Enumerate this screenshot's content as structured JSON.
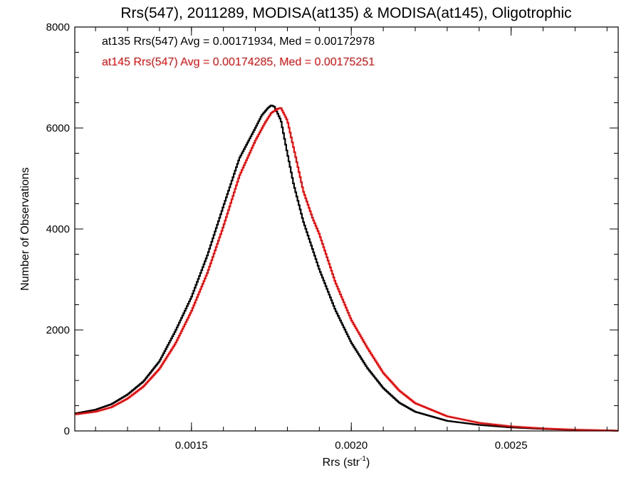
{
  "chart_data": {
    "type": "line",
    "title": "Rrs(547), 2011289, MODISA(at135) & MODISA(at145), Oligotrophic",
    "xlabel_main": "Rrs (str",
    "xlabel_sup": "-1",
    "xlabel_close": ")",
    "ylabel": "Number of Observations",
    "xlim": [
      0.001135,
      0.002835
    ],
    "ylim": [
      0,
      8000
    ],
    "x_ticks": [
      {
        "value": 0.0015,
        "label": "0.0015"
      },
      {
        "value": 0.002,
        "label": "0.0020"
      },
      {
        "value": 0.0025,
        "label": "0.0025"
      }
    ],
    "x_minor_step": 0.0001,
    "y_ticks": [
      {
        "value": 0,
        "label": "0"
      },
      {
        "value": 2000,
        "label": "2000"
      },
      {
        "value": 4000,
        "label": "4000"
      },
      {
        "value": 6000,
        "label": "6000"
      },
      {
        "value": 8000,
        "label": "8000"
      }
    ],
    "y_minor_step": 500,
    "grid": false,
    "legend_placement": "top-left",
    "series": [
      {
        "name": "at135",
        "label": "at135 Rrs(547) Avg = 0.00171934, Med = 0.00172978",
        "color": "#000000",
        "x": [
          0.00114,
          0.0012,
          0.00125,
          0.0013,
          0.00135,
          0.0014,
          0.00145,
          0.0015,
          0.00155,
          0.0016,
          0.00165,
          0.0017,
          0.00172,
          0.00174,
          0.00175,
          0.00176,
          0.00178,
          0.0018,
          0.00182,
          0.00185,
          0.0019,
          0.00195,
          0.002,
          0.00205,
          0.0021,
          0.00215,
          0.0022,
          0.0023,
          0.0024,
          0.0025,
          0.0026,
          0.0027,
          0.0028,
          0.00283
        ],
        "y": [
          350,
          420,
          530,
          720,
          980,
          1380,
          1980,
          2650,
          3480,
          4450,
          5400,
          6000,
          6250,
          6400,
          6450,
          6420,
          6150,
          5500,
          4880,
          4150,
          3200,
          2400,
          1750,
          1250,
          850,
          560,
          380,
          200,
          120,
          70,
          40,
          20,
          10,
          5
        ]
      },
      {
        "name": "at145",
        "label": "at145 Rrs(547) Avg = 0.00174285, Med = 0.00175251",
        "color": "#ff0000",
        "x": [
          0.00114,
          0.0012,
          0.00125,
          0.0013,
          0.00135,
          0.0014,
          0.00145,
          0.0015,
          0.00155,
          0.0016,
          0.00165,
          0.0017,
          0.00173,
          0.00175,
          0.00177,
          0.00178,
          0.0018,
          0.00182,
          0.00185,
          0.00188,
          0.0019,
          0.00195,
          0.002,
          0.00205,
          0.0021,
          0.00215,
          0.0022,
          0.0023,
          0.0024,
          0.0025,
          0.0026,
          0.0027,
          0.0028,
          0.00283
        ],
        "y": [
          330,
          380,
          470,
          640,
          880,
          1230,
          1730,
          2370,
          3130,
          4050,
          5050,
          5750,
          6100,
          6300,
          6380,
          6400,
          6150,
          5600,
          4750,
          4200,
          3900,
          2950,
          2200,
          1650,
          1150,
          800,
          550,
          290,
          160,
          90,
          50,
          25,
          12,
          6
        ]
      }
    ]
  }
}
